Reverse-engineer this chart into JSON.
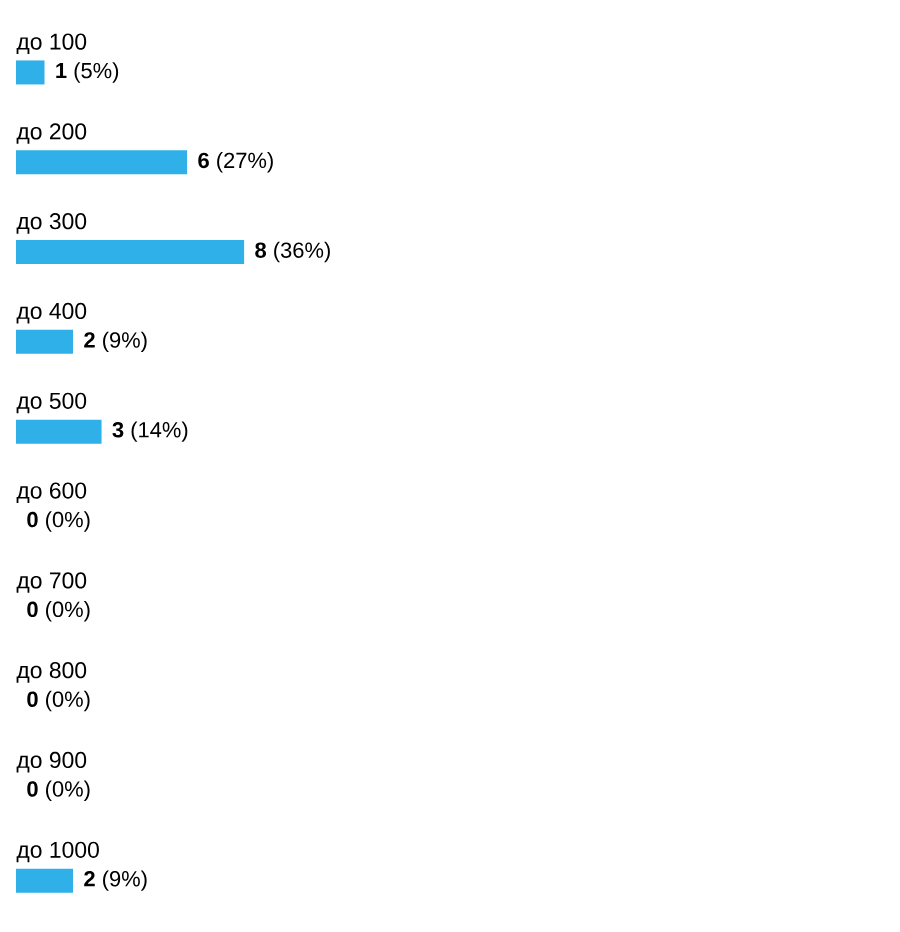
{
  "chart_data": {
    "type": "bar",
    "orientation": "horizontal",
    "color": "#2fb0e8",
    "categories": [
      "до 100",
      "до 200",
      "до 300",
      "до 400",
      "до 500",
      "до 600",
      "до 700",
      "до 800",
      "до 900",
      "до 1000"
    ],
    "values": [
      1,
      6,
      8,
      2,
      3,
      0,
      0,
      0,
      0,
      2
    ],
    "value_labels": [
      "**1** (5%)",
      "**6** (27%)",
      "**8** (36%)",
      "**2** (9%)",
      "**3** (14%)",
      "**0** (0%)",
      "**0** (0%)",
      "**0** (0%)",
      "**0** (0%)",
      "**2** (9%)"
    ]
  }
}
